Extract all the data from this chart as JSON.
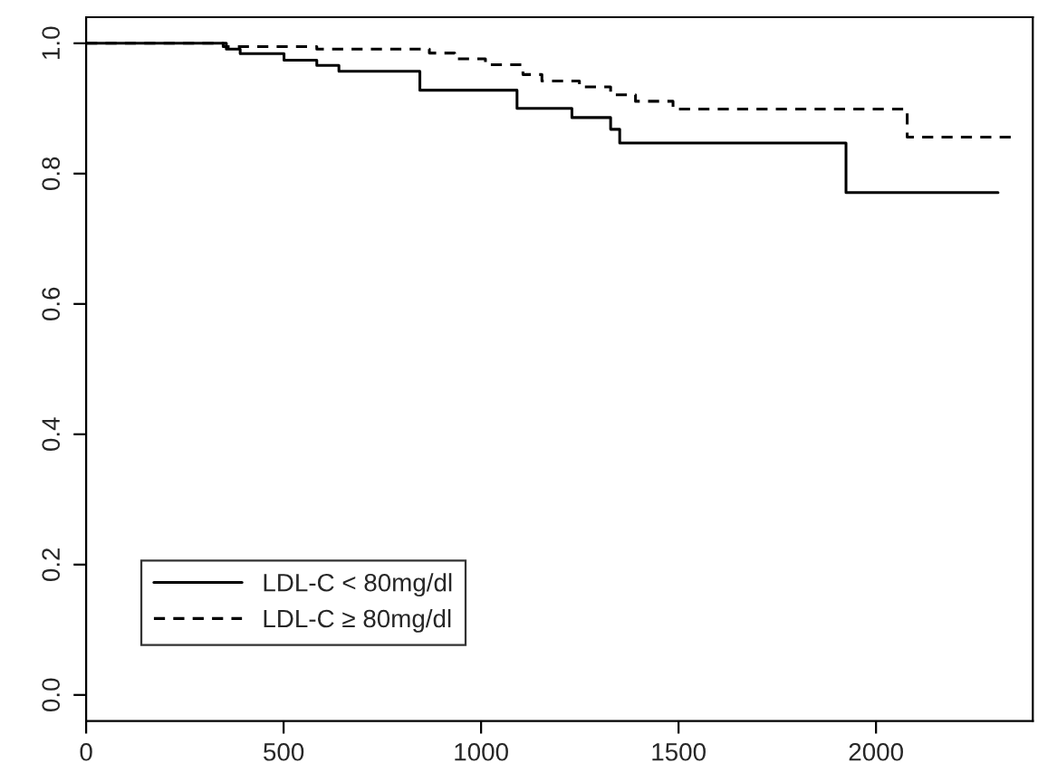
{
  "chart_data": {
    "type": "step",
    "xlim": [
      0,
      2397
    ],
    "ylim": [
      -0.04,
      1.04
    ],
    "xticks": [
      0,
      500,
      1000,
      1500,
      2000
    ],
    "yticks": [
      {
        "value": 0,
        "label": "0.0"
      },
      {
        "value": 0.2,
        "label": "0.2"
      },
      {
        "value": 0.4,
        "label": "0.4"
      },
      {
        "value": 0.6,
        "label": "0.6"
      },
      {
        "value": 0.8,
        "label": "0.8"
      },
      {
        "value": 1,
        "label": "1.0"
      }
    ],
    "grid": false,
    "legend": "bottom left",
    "marker": "none",
    "series": [
      {
        "name": "LDL-C < 80mg/dl",
        "color": "#000000",
        "line_style": "solid",
        "x": [
          0,
          355,
          390,
          501,
          584,
          640,
          845,
          1091,
          1230,
          1328,
          1351,
          1924,
          2309
        ],
        "values": [
          1.0,
          0.991,
          0.984,
          0.974,
          0.966,
          0.957,
          0.928,
          0.9,
          0.886,
          0.868,
          0.847,
          0.771,
          0.771
        ]
      },
      {
        "name": "LDL-C ≥ 80mg/dl",
        "color": "#000000",
        "line_style": "dashed",
        "x": [
          0,
          347,
          584,
          869,
          933,
          1011,
          1106,
          1154,
          1249,
          1328,
          1391,
          1486,
          1533,
          2079,
          2348
        ],
        "values": [
          1.0,
          0.995,
          0.991,
          0.985,
          0.976,
          0.967,
          0.952,
          0.942,
          0.933,
          0.921,
          0.911,
          0.899,
          0.899,
          0.856,
          0.856
        ]
      }
    ]
  }
}
